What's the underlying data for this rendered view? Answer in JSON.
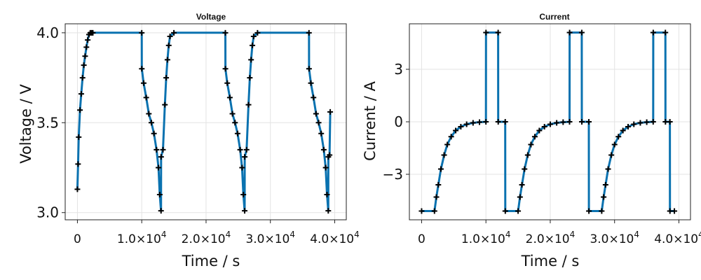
{
  "chart_data": [
    {
      "type": "scatter",
      "title": "Voltage",
      "xlabel": "Time / s",
      "ylabel": "Voltage / V",
      "xlim": [
        -1900,
        41800
      ],
      "ylim": [
        2.96,
        4.05
      ],
      "xticks": [
        0,
        10000,
        20000,
        30000,
        40000
      ],
      "xtick_labels": [
        "0",
        "1.0×10",
        "2.0×10",
        "3.0×10",
        "4.0×10"
      ],
      "xtick_exponent": "4",
      "yticks": [
        3.0,
        3.5,
        4.0
      ],
      "ytick_labels": [
        "3.0",
        "3.5",
        "4.0"
      ],
      "grid": true,
      "line_color": "#0a72b0",
      "marker_color": "#000000",
      "marker": "plus",
      "series": [
        {
          "x": [
            0,
            100,
            200,
            400,
            600,
            800,
            1000,
            1200,
            1400,
            1600,
            1800,
            2000,
            2200,
            2400,
            10000,
            10010,
            10300,
            10700,
            11100,
            11500,
            11900,
            12300,
            12600,
            12800,
            13000,
            13010,
            13300,
            13600,
            13800,
            14000,
            14200,
            14400,
            15000,
            23000,
            23010,
            23300,
            23700,
            24100,
            24500,
            24900,
            25300,
            25600,
            25800,
            26000,
            26010,
            26300,
            26600,
            26800,
            27000,
            27200,
            27400,
            28000,
            36000,
            36010,
            36300,
            36700,
            37100,
            37500,
            37900,
            38300,
            38600,
            38800,
            39000,
            39010,
            39200,
            39300
          ],
          "y": [
            3.13,
            3.27,
            3.42,
            3.57,
            3.66,
            3.75,
            3.82,
            3.87,
            3.92,
            3.96,
            3.99,
            4.0,
            4.0,
            4.0,
            4.0,
            3.8,
            3.72,
            3.64,
            3.55,
            3.5,
            3.44,
            3.35,
            3.25,
            3.1,
            3.01,
            3.31,
            3.35,
            3.6,
            3.75,
            3.85,
            3.93,
            3.98,
            4.0,
            4.0,
            3.8,
            3.72,
            3.64,
            3.55,
            3.5,
            3.44,
            3.35,
            3.25,
            3.1,
            3.01,
            3.31,
            3.35,
            3.6,
            3.75,
            3.85,
            3.93,
            3.98,
            4.0,
            4.0,
            3.8,
            3.72,
            3.64,
            3.55,
            3.5,
            3.44,
            3.35,
            3.25,
            3.1,
            3.01,
            3.31,
            3.32,
            3.56
          ]
        }
      ]
    },
    {
      "type": "scatter",
      "title": "Current",
      "xlabel": "Time / s",
      "ylabel": "Current / A",
      "xlim": [
        -1900,
        41800
      ],
      "ylim": [
        -5.6,
        5.6
      ],
      "xticks": [
        0,
        10000,
        20000,
        30000,
        40000
      ],
      "xtick_labels": [
        "0",
        "1.0×10",
        "2.0×10",
        "3.0×10",
        "4.0×10"
      ],
      "xtick_exponent": "4",
      "yticks": [
        -3,
        0,
        3
      ],
      "ytick_labels": [
        "−3",
        "0",
        "3"
      ],
      "grid": true,
      "line_color": "#0a72b0",
      "marker_color": "#000000",
      "marker": "plus",
      "series": [
        {
          "x": [
            0,
            2000,
            2300,
            2600,
            3000,
            3500,
            4000,
            4600,
            5300,
            6100,
            7000,
            8000,
            9000,
            10000,
            10010,
            11900,
            11910,
            13000,
            13010,
            15000,
            15300,
            15600,
            16000,
            16500,
            17000,
            17600,
            18300,
            19100,
            20000,
            21000,
            22000,
            23000,
            23010,
            24900,
            24910,
            26000,
            26010,
            28000,
            28300,
            28600,
            29000,
            29500,
            30000,
            30600,
            31300,
            32100,
            33000,
            34000,
            35000,
            36000,
            36010,
            37900,
            37910,
            38600,
            38610,
            39300
          ],
          "y": [
            -5.1,
            -5.1,
            -4.3,
            -3.6,
            -2.7,
            -1.9,
            -1.3,
            -0.85,
            -0.5,
            -0.28,
            -0.14,
            -0.06,
            -0.02,
            0,
            5.1,
            5.1,
            0,
            0,
            -5.1,
            -5.1,
            -4.3,
            -3.6,
            -2.7,
            -1.9,
            -1.3,
            -0.85,
            -0.5,
            -0.28,
            -0.14,
            -0.06,
            -0.02,
            0,
            5.1,
            5.1,
            0,
            0,
            -5.1,
            -5.1,
            -4.3,
            -3.6,
            -2.7,
            -1.9,
            -1.3,
            -0.85,
            -0.5,
            -0.28,
            -0.14,
            -0.06,
            -0.02,
            0,
            5.1,
            5.1,
            0,
            0,
            -5.1,
            -5.1
          ]
        }
      ]
    }
  ]
}
